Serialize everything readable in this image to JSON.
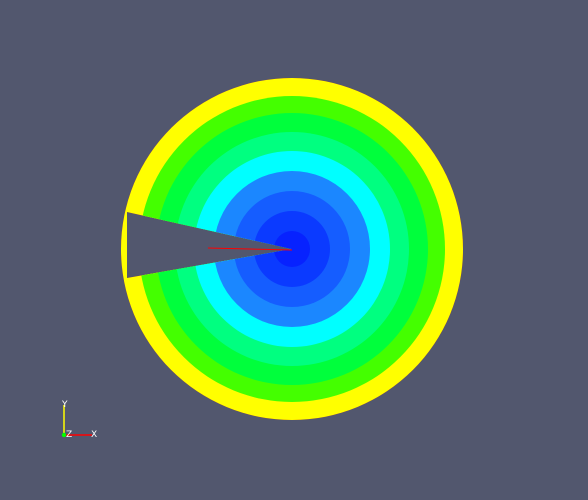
{
  "view": {
    "background": "#52576e",
    "plot_type": "filled contour bands on a disk with a wedge cut-out",
    "bands_inner_to_outer": [
      {
        "color": "#0722ff"
      },
      {
        "color": "#0b3aff"
      },
      {
        "color": "#155dff"
      },
      {
        "color": "#1b87ff"
      },
      {
        "color": "#00ffff"
      },
      {
        "color": "#00ff80"
      },
      {
        "color": "#00ff3c"
      },
      {
        "color": "#44ff00"
      },
      {
        "color": "#ffff00"
      },
      {
        "color": "#ffff00"
      },
      {
        "color": "#ff0000"
      }
    ],
    "seam_line_color": "#ff0000"
  },
  "axes_triad": {
    "y_label": "Y",
    "z_label": "Z",
    "x_label": "X",
    "y_color": "#ffff00",
    "x_color": "#ff0000",
    "z_color": "#00ff00"
  }
}
